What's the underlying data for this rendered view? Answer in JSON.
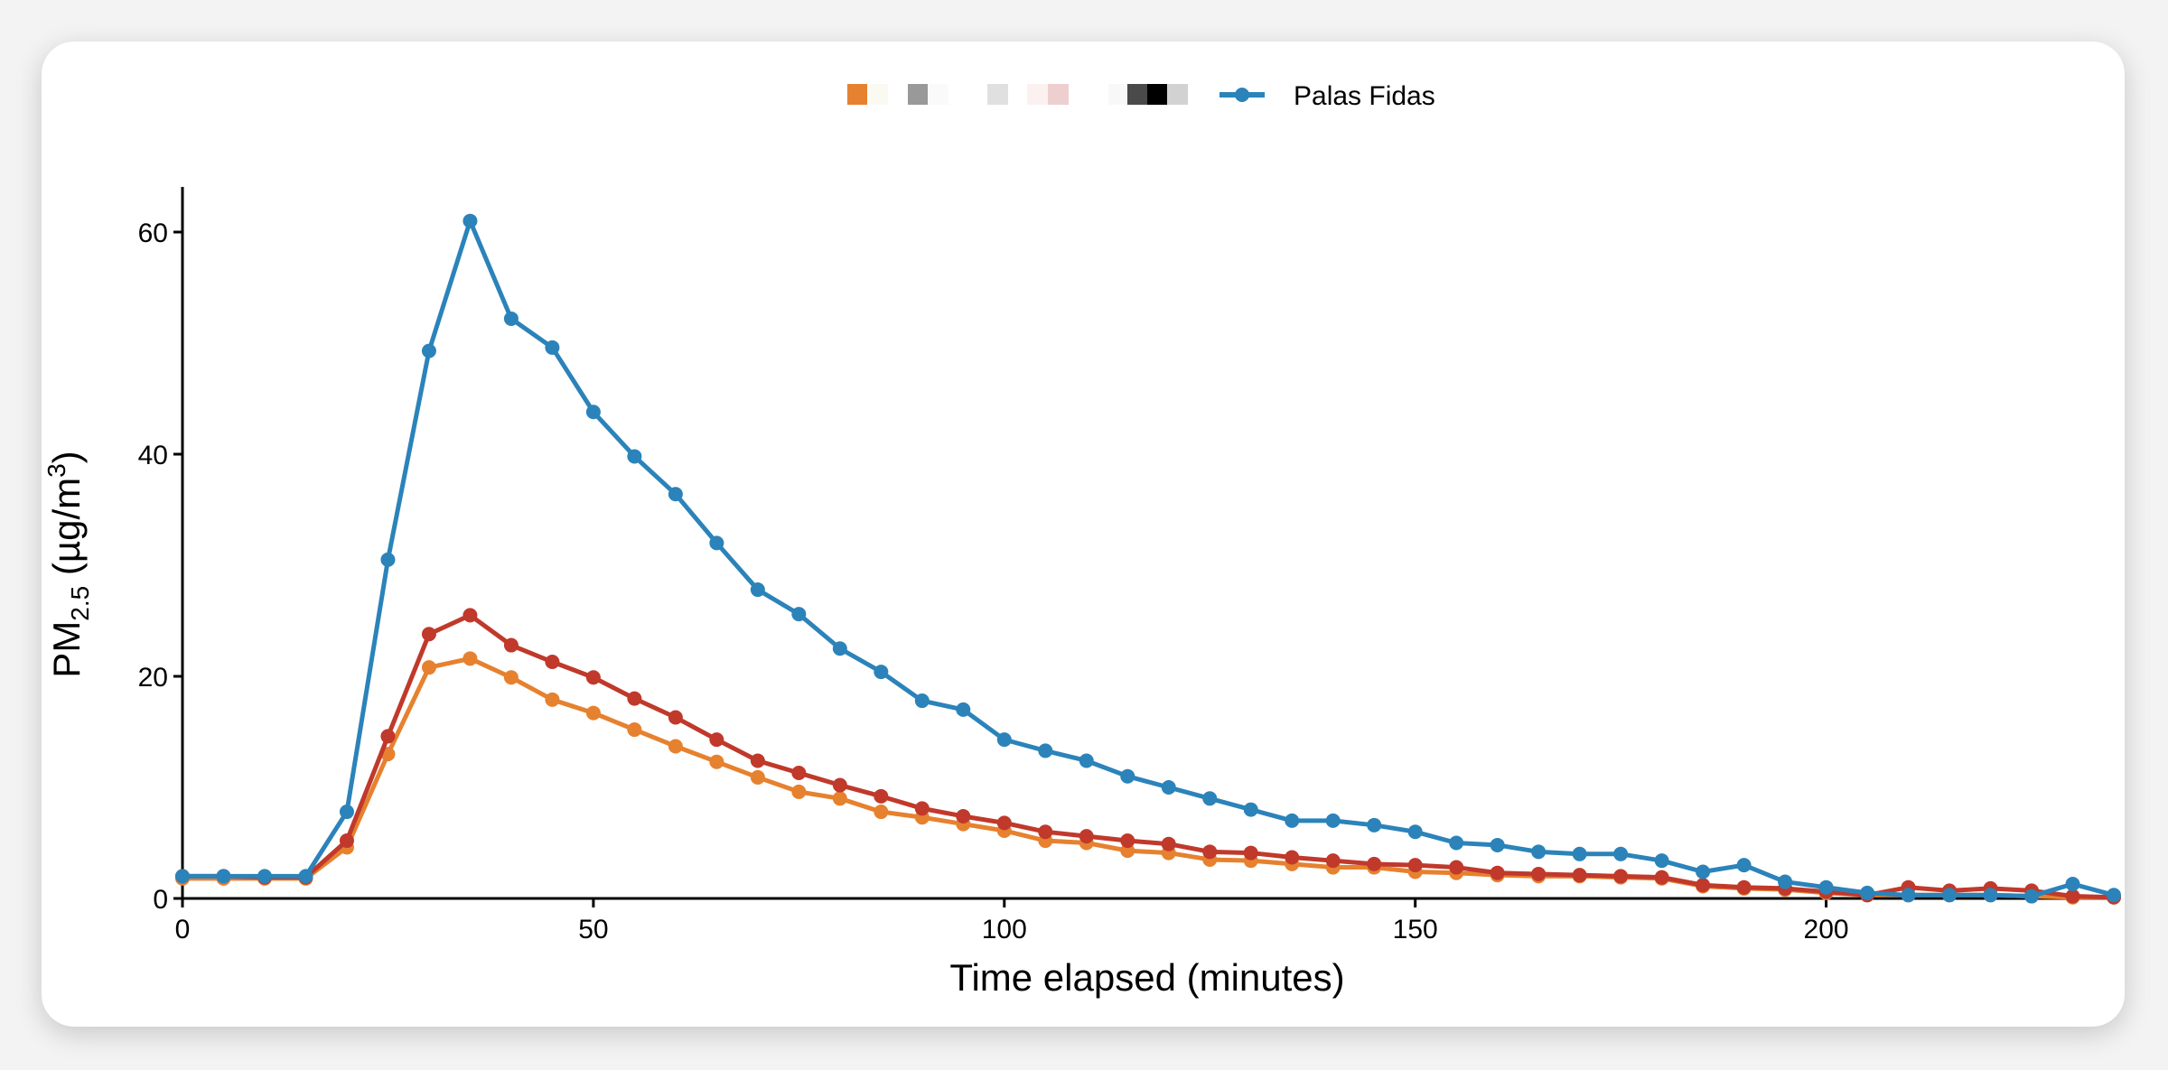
{
  "chart_data": {
    "type": "line",
    "title": "",
    "xlabel": "Time elapsed (minutes)",
    "ylabel": {
      "main": "PM",
      "sub": "2.5",
      "unit": " (µg/m",
      "sup": "3",
      "close": ")"
    },
    "xlim": [
      0,
      235
    ],
    "ylim": [
      0,
      64
    ],
    "xticks": [
      0,
      50,
      100,
      150,
      200
    ],
    "yticks": [
      0,
      20,
      40,
      60
    ],
    "grid": false,
    "legend_position": "top",
    "legend_swatches": [
      "#E6812F",
      "#FBFAF2",
      "#999999",
      "#FAFAFA",
      "#E0E0E0",
      "#FBF1F1",
      "#EECFCF",
      "#F8F8F8",
      "#4A4A4A",
      "#000000",
      "#D2D2D2"
    ],
    "x": [
      0,
      5,
      10,
      15,
      20,
      25,
      30,
      35,
      40,
      45,
      50,
      55,
      60,
      65,
      70,
      75,
      80,
      85,
      90,
      95,
      100,
      105,
      110,
      115,
      120,
      125,
      130,
      135,
      140,
      145,
      150,
      155,
      160,
      165,
      170,
      175,
      180,
      185,
      190,
      195,
      200,
      205,
      210,
      215,
      220,
      225,
      230,
      235
    ],
    "series": [
      {
        "name": "",
        "color": "#E6812F",
        "values": [
          1.8,
          1.8,
          1.8,
          1.8,
          4.6,
          13,
          20.8,
          21.6,
          19.9,
          17.9,
          16.7,
          15.2,
          13.7,
          12.3,
          10.9,
          9.6,
          9,
          7.8,
          7.3,
          6.7,
          6.1,
          5.2,
          5,
          4.3,
          4.1,
          3.5,
          3.4,
          3.1,
          2.8,
          2.8,
          2.4,
          2.3,
          2.1,
          2,
          2,
          1.9,
          1.8,
          1.1,
          0.9,
          0.8,
          0.5,
          0.3,
          0.3,
          0.3,
          0.3,
          0.2,
          0.1,
          0.1
        ]
      },
      {
        "name": "",
        "color": "#C0392B",
        "values": [
          2,
          2,
          1.9,
          1.9,
          5.2,
          14.6,
          23.8,
          25.5,
          22.8,
          21.3,
          19.9,
          18,
          16.3,
          14.3,
          12.4,
          11.3,
          10.2,
          9.2,
          8.1,
          7.4,
          6.8,
          6,
          5.6,
          5.2,
          4.9,
          4.2,
          4.1,
          3.7,
          3.4,
          3.1,
          3,
          2.8,
          2.3,
          2.2,
          2.1,
          2,
          1.9,
          1.2,
          1,
          0.9,
          0.6,
          0.3,
          1,
          0.7,
          0.9,
          0.7,
          0.2,
          0.1
        ]
      },
      {
        "name": "Palas Fidas",
        "color": "#2B83BA",
        "values": [
          2,
          2,
          2,
          2,
          7.8,
          30.5,
          49.3,
          61,
          52.2,
          49.6,
          43.8,
          39.8,
          36.4,
          32,
          27.8,
          25.6,
          22.5,
          20.4,
          17.8,
          17,
          14.3,
          13.3,
          12.4,
          11,
          10,
          9,
          8,
          7,
          7,
          6.6,
          6,
          5,
          4.8,
          4.2,
          4,
          4,
          3.4,
          2.4,
          3,
          1.5,
          1,
          0.5,
          0.3,
          0.3,
          0.3,
          0.2,
          1.3,
          0.3
        ]
      }
    ]
  }
}
